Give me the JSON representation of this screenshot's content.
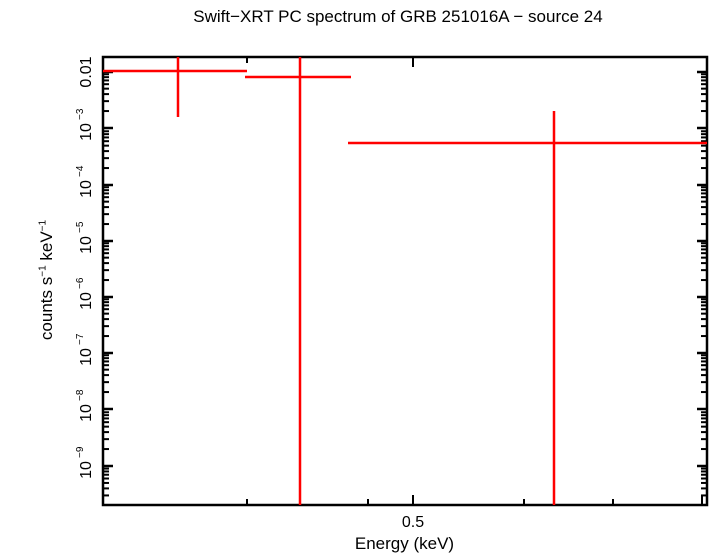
{
  "chart_data": {
    "type": "scatter",
    "title": "Swift−XRT PC spectrum of GRB 251016A − source 24",
    "xlabel": "Energy (keV)",
    "ylabel": "counts s⁻¹ keV⁻¹",
    "x_scale": "log",
    "y_scale": "log",
    "xlim": [
      0.3,
      10
    ],
    "ylim": [
      2e-10,
      0.02
    ],
    "x_tick_labels": [
      "0.5"
    ],
    "y_tick_labels": [
      "0.01",
      "10⁻³",
      "10⁻⁴",
      "10⁻⁵",
      "10⁻⁶",
      "10⁻⁷",
      "10⁻⁸",
      "10⁻⁹"
    ],
    "grid": false,
    "legend": null,
    "series": [
      {
        "name": "source 24 PC spectrum",
        "color": "#ff0000",
        "points": [
          {
            "x": 0.38,
            "x_lo": 0.3,
            "x_hi": 0.44,
            "y": 0.0105,
            "y_lo": 0.0016,
            "y_hi": 0.02
          },
          {
            "x": 0.44,
            "x_lo": 0.38,
            "x_hi": 0.47,
            "y": 0.008,
            "y_lo": 2e-10,
            "y_hi": 0.02
          },
          {
            "x": 0.75,
            "x_lo": 0.47,
            "x_hi": 10,
            "y": 0.00055,
            "y_lo": 2e-10,
            "y_hi": 0.002
          }
        ]
      }
    ]
  },
  "labels": {
    "title": "Swift−XRT PC spectrum of GRB 251016A − source 24",
    "xlabel": "Energy (keV)",
    "ylabel_main": "counts s",
    "ylabel_exp1": "−1",
    "ylabel_mid": " keV",
    "ylabel_exp2": "−1",
    "xtick_0_5": "0.5",
    "ytick_0_01": "0.01",
    "ytick_base": "10",
    "ytick_exps": [
      "−3",
      "−4",
      "−5",
      "−6",
      "−7",
      "−8",
      "−9"
    ]
  }
}
